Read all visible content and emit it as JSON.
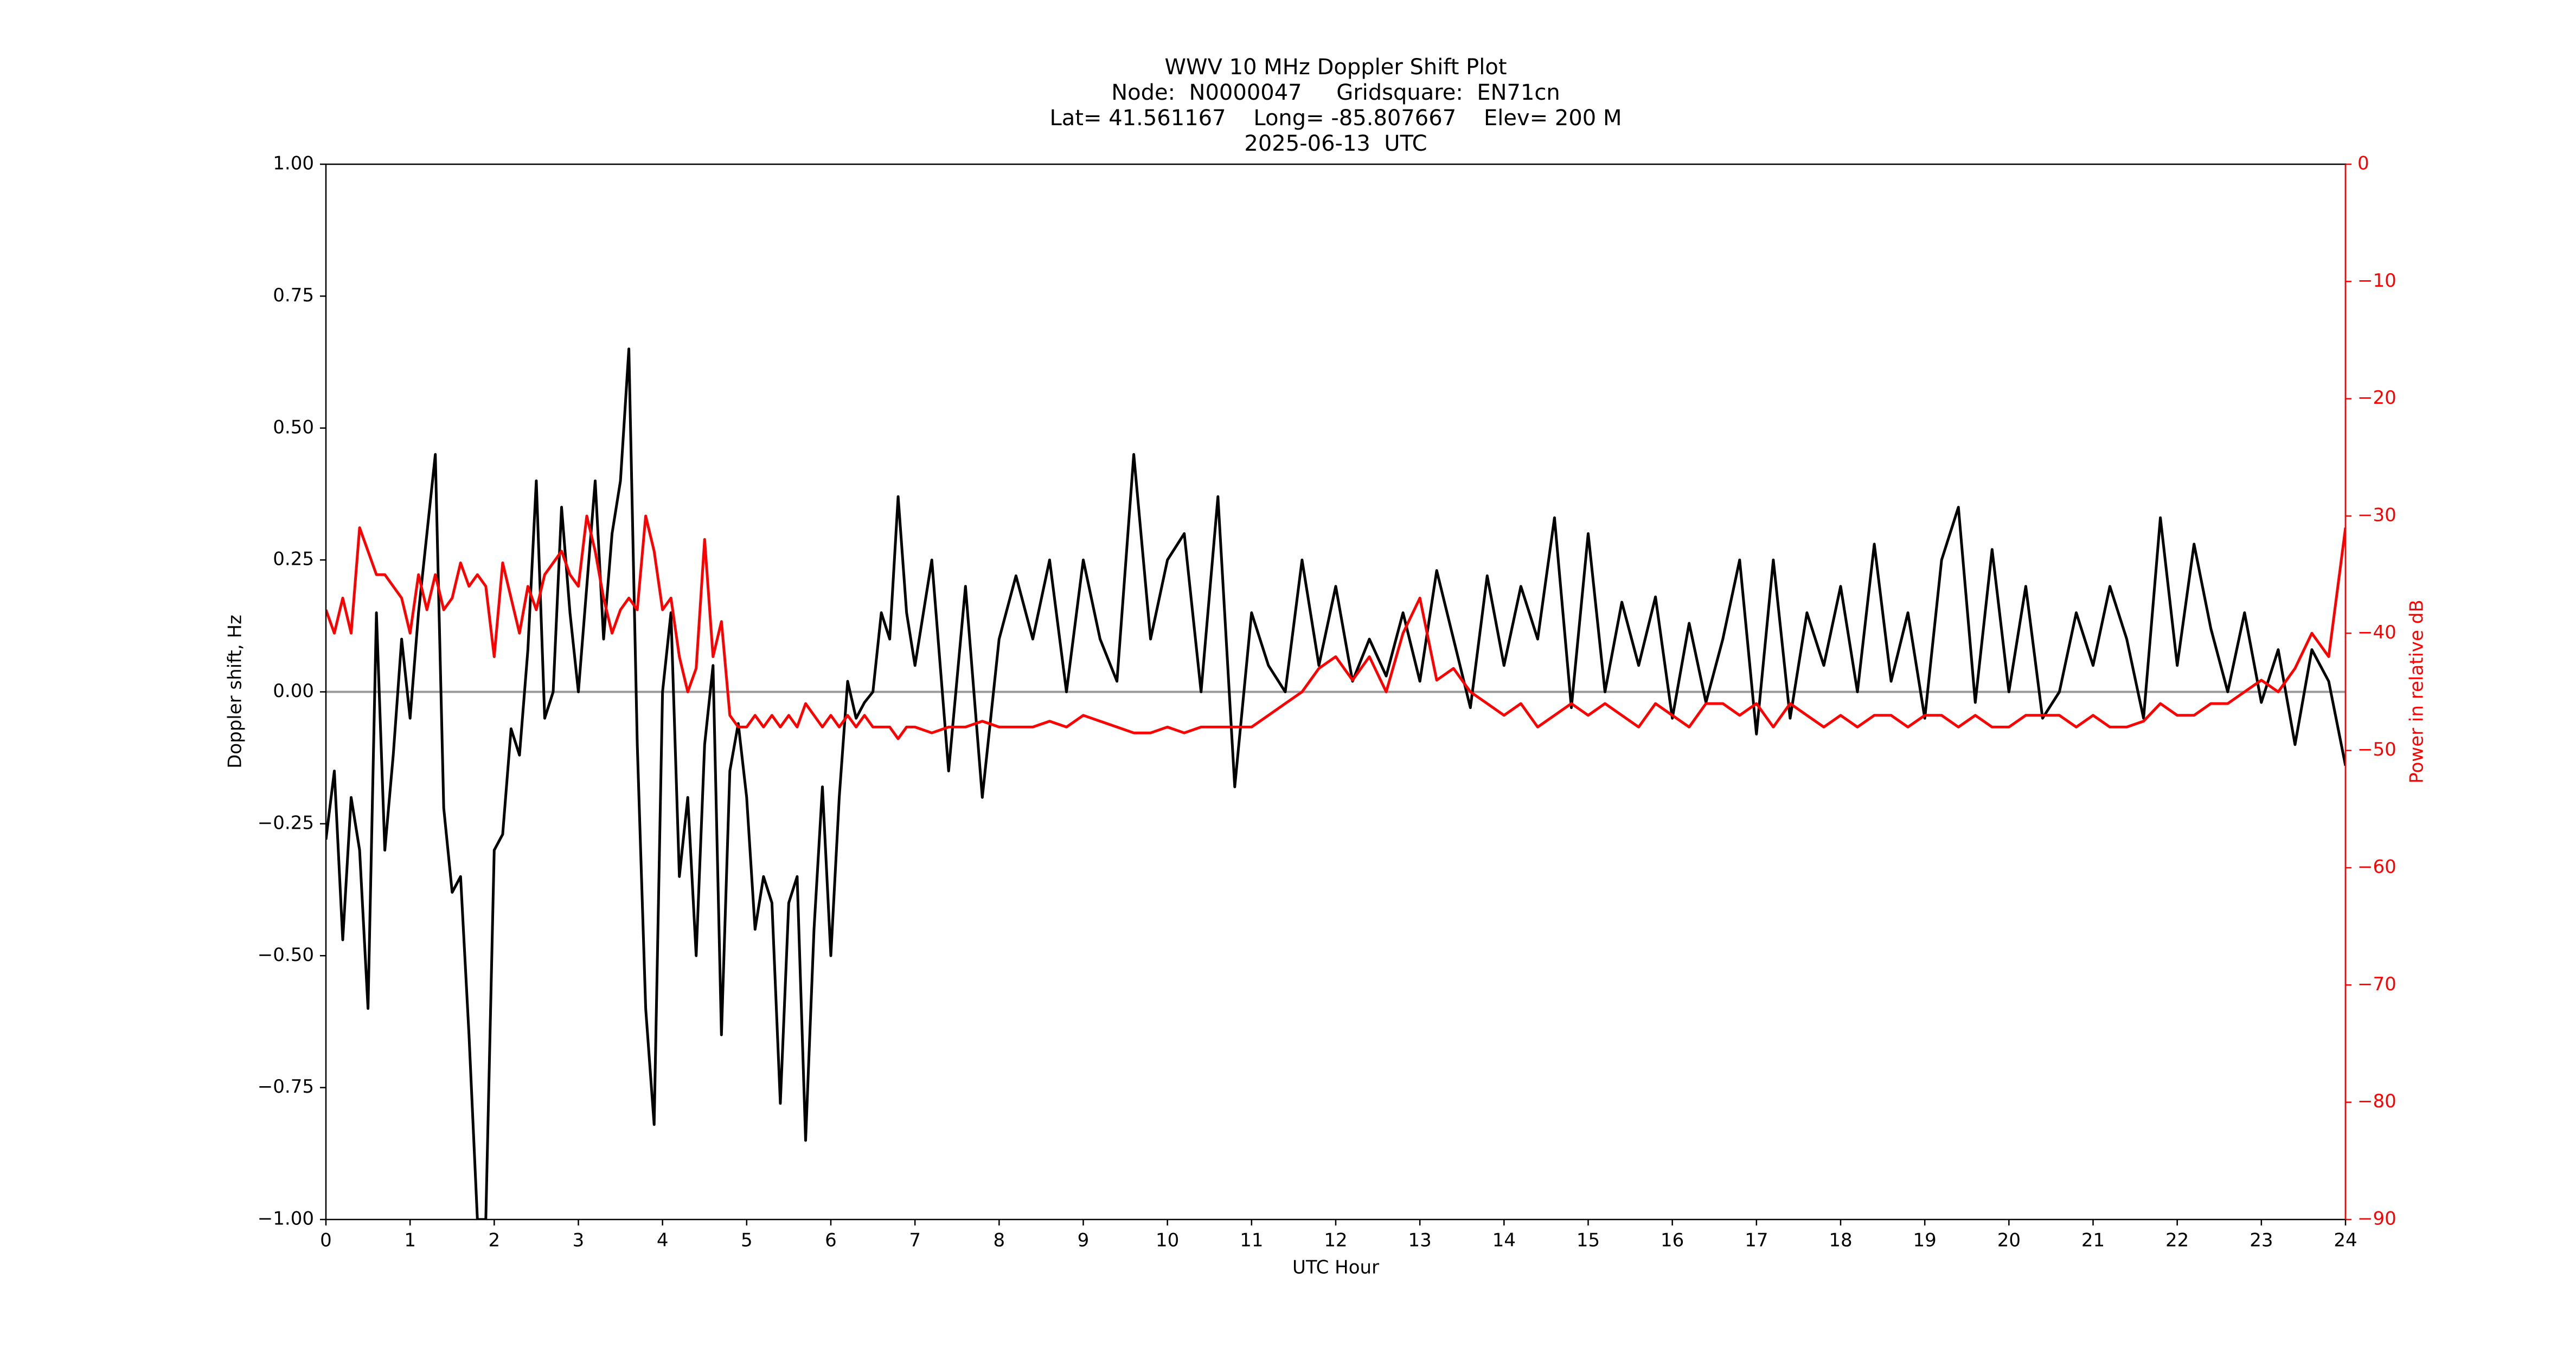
{
  "chart_data": {
    "type": "line",
    "title": "WWV 10 MHz Doppler Shift Plot",
    "subtitle": [
      "Node:  N0000047     Gridsquare:  EN71cn",
      "Lat= 41.561167    Long= -85.807667    Elev= 200 M",
      "2025-06-13  UTC"
    ],
    "x_label": "UTC Hour",
    "y_label": "Doppler shift, Hz",
    "y2_label": "Power in relative dB",
    "x": [
      0,
      0.1,
      0.2,
      0.3,
      0.4,
      0.5,
      0.6,
      0.7,
      0.8,
      0.9,
      1,
      1.1,
      1.2,
      1.3,
      1.4,
      1.5,
      1.6,
      1.7,
      1.8,
      1.9,
      2,
      2.1,
      2.2,
      2.3,
      2.4,
      2.5,
      2.6,
      2.7,
      2.8,
      2.9,
      3,
      3.1,
      3.2,
      3.3,
      3.4,
      3.5,
      3.6,
      3.7,
      3.8,
      3.9,
      4,
      4.1,
      4.2,
      4.3,
      4.4,
      4.5,
      4.6,
      4.7,
      4.8,
      4.9,
      5,
      5.1,
      5.2,
      5.3,
      5.4,
      5.5,
      5.6,
      5.7,
      5.8,
      5.9,
      6,
      6.1,
      6.2,
      6.3,
      6.4,
      6.5,
      6.6,
      6.7,
      6.8,
      6.9,
      7,
      7.2,
      7.4,
      7.6,
      7.8,
      8,
      8.2,
      8.4,
      8.6,
      8.8,
      9,
      9.2,
      9.4,
      9.6,
      9.8,
      10,
      10.2,
      10.4,
      10.6,
      10.8,
      11,
      11.2,
      11.4,
      11.6,
      11.8,
      12,
      12.2,
      12.4,
      12.6,
      12.8,
      13,
      13.2,
      13.4,
      13.6,
      13.8,
      14,
      14.2,
      14.4,
      14.6,
      14.8,
      15,
      15.2,
      15.4,
      15.6,
      15.8,
      16,
      16.2,
      16.4,
      16.6,
      16.8,
      17,
      17.2,
      17.4,
      17.6,
      17.8,
      18,
      18.2,
      18.4,
      18.6,
      18.8,
      19,
      19.2,
      19.4,
      19.6,
      19.8,
      20,
      20.2,
      20.4,
      20.6,
      20.8,
      21,
      21.2,
      21.4,
      21.6,
      21.8,
      22,
      22.2,
      22.4,
      22.6,
      22.8,
      23,
      23.2,
      23.4,
      23.6,
      23.8,
      24
    ],
    "series": [
      {
        "name": "Doppler shift",
        "color": "#000000",
        "axis": "y",
        "values": [
          -0.28,
          -0.15,
          -0.47,
          -0.2,
          -0.3,
          -0.6,
          0.15,
          -0.3,
          -0.12,
          0.1,
          -0.05,
          0.15,
          0.3,
          0.45,
          -0.22,
          -0.38,
          -0.35,
          -0.65,
          -1.0,
          -1.0,
          -0.3,
          -0.27,
          -0.07,
          -0.12,
          0.08,
          0.4,
          -0.05,
          0.0,
          0.35,
          0.15,
          0.0,
          0.2,
          0.4,
          0.1,
          0.3,
          0.4,
          0.65,
          -0.1,
          -0.6,
          -0.82,
          0.0,
          0.15,
          -0.35,
          -0.2,
          -0.5,
          -0.1,
          0.05,
          -0.65,
          -0.15,
          -0.06,
          -0.2,
          -0.45,
          -0.35,
          -0.4,
          -0.78,
          -0.4,
          -0.35,
          -0.85,
          -0.45,
          -0.18,
          -0.5,
          -0.2,
          0.02,
          -0.05,
          -0.02,
          0.0,
          0.15,
          0.1,
          0.37,
          0.15,
          0.05,
          0.25,
          -0.15,
          0.2,
          -0.2,
          0.1,
          0.22,
          0.1,
          0.25,
          0.0,
          0.25,
          0.1,
          0.02,
          0.45,
          0.1,
          0.25,
          0.3,
          0.0,
          0.37,
          -0.18,
          0.15,
          0.05,
          0.0,
          0.25,
          0.05,
          0.2,
          0.02,
          0.1,
          0.03,
          0.15,
          0.02,
          0.23,
          0.1,
          -0.03,
          0.22,
          0.05,
          0.2,
          0.1,
          0.33,
          -0.03,
          0.3,
          0.0,
          0.17,
          0.05,
          0.18,
          -0.05,
          0.13,
          -0.02,
          0.1,
          0.25,
          -0.08,
          0.25,
          -0.05,
          0.15,
          0.05,
          0.2,
          0.0,
          0.28,
          0.02,
          0.15,
          -0.05,
          0.25,
          0.35,
          -0.02,
          0.27,
          0.0,
          0.2,
          -0.05,
          0.0,
          0.15,
          0.05,
          0.2,
          0.1,
          -0.05,
          0.33,
          0.05,
          0.28,
          0.12,
          0.0,
          0.15,
          -0.02,
          0.08,
          -0.1,
          0.08,
          0.02,
          -0.14
        ]
      },
      {
        "name": "Power",
        "color": "#ff0000",
        "axis": "y2",
        "values": [
          -38,
          -40,
          -37,
          -40,
          -31,
          -33,
          -35,
          -35,
          -36,
          -37,
          -40,
          -35,
          -38,
          -35,
          -38,
          -37,
          -34,
          -36,
          -35,
          -36,
          -42,
          -34,
          -37,
          -40,
          -36,
          -38,
          -35,
          -34,
          -33,
          -35,
          -36,
          -30,
          -33,
          -37,
          -40,
          -38,
          -37,
          -38,
          -30,
          -33,
          -38,
          -37,
          -42,
          -45,
          -43,
          -32,
          -42,
          -39,
          -47,
          -48,
          -48,
          -47,
          -48,
          -47,
          -48,
          -47,
          -48,
          -46,
          -47,
          -48,
          -47,
          -48,
          -47,
          -48,
          -47,
          -48,
          -48,
          -48,
          -49,
          -48,
          -48,
          -48.5,
          -48,
          -48,
          -47.5,
          -48,
          -48,
          -48,
          -47.5,
          -48,
          -47,
          -47.5,
          -48,
          -48.5,
          -48.5,
          -48,
          -48.5,
          -48,
          -48,
          -48,
          -48,
          -47,
          -46,
          -45,
          -43,
          -42,
          -44,
          -42,
          -45,
          -40,
          -37,
          -44,
          -43,
          -45,
          -46,
          -47,
          -46,
          -48,
          -47,
          -46,
          -47,
          -46,
          -47,
          -48,
          -46,
          -47,
          -48,
          -46,
          -46,
          -47,
          -46,
          -48,
          -46,
          -47,
          -48,
          -47,
          -48,
          -47,
          -47,
          -48,
          -47,
          -47,
          -48,
          -47,
          -48,
          -48,
          -47,
          -47,
          -47,
          -48,
          -47,
          -48,
          -48,
          -47.5,
          -46,
          -47,
          -47,
          -46,
          -46,
          -45,
          -44,
          -45,
          -43,
          -40,
          -42,
          -31
        ]
      }
    ],
    "hlines": [
      0
    ],
    "hline_color": "#999999",
    "xlim": [
      0,
      24
    ],
    "xticks": [
      0,
      1,
      2,
      3,
      4,
      5,
      6,
      7,
      8,
      9,
      10,
      11,
      12,
      13,
      14,
      15,
      16,
      17,
      18,
      19,
      20,
      21,
      22,
      23,
      24
    ],
    "ylim": [
      -1,
      1
    ],
    "yticks": [
      {
        "value": -1,
        "label": "−1.00"
      },
      {
        "value": -0.75,
        "label": "−0.75"
      },
      {
        "value": -0.5,
        "label": "−0.50"
      },
      {
        "value": -0.25,
        "label": "−0.25"
      },
      {
        "value": 0,
        "label": "0.00"
      },
      {
        "value": 0.25,
        "label": "0.25"
      },
      {
        "value": 0.5,
        "label": "0.50"
      },
      {
        "value": 0.75,
        "label": "0.75"
      },
      {
        "value": 1,
        "label": "1.00"
      }
    ],
    "y2lim": [
      -90,
      0
    ],
    "y2ticks": [
      {
        "value": -90,
        "label": "−90"
      },
      {
        "value": -80,
        "label": "−80"
      },
      {
        "value": -70,
        "label": "−70"
      },
      {
        "value": -60,
        "label": "−60"
      },
      {
        "value": -50,
        "label": "−50"
      },
      {
        "value": -40,
        "label": "−40"
      },
      {
        "value": -30,
        "label": "−30"
      },
      {
        "value": -20,
        "label": "−20"
      },
      {
        "value": -10,
        "label": "−10"
      },
      0
    ],
    "y2_color": "#ff0000",
    "grid": false
  }
}
